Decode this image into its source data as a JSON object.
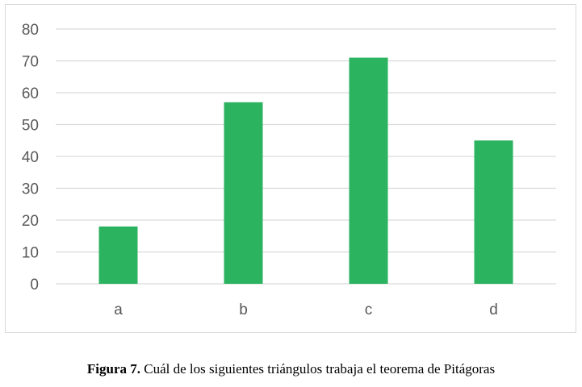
{
  "chart_data": {
    "type": "bar",
    "categories": [
      "a",
      "b",
      "c",
      "d"
    ],
    "values": [
      18,
      57,
      71,
      45
    ],
    "ylim": [
      0,
      80
    ],
    "yticks": [
      0,
      10,
      20,
      30,
      40,
      50,
      60,
      70,
      80
    ],
    "grid": true,
    "bar_color": "#2bb35f",
    "grid_color": "#d9d9d9"
  },
  "caption": {
    "label": "Figura 7.",
    "text": " Cuál de los siguientes triángulos trabaja el teorema de Pitágoras"
  }
}
